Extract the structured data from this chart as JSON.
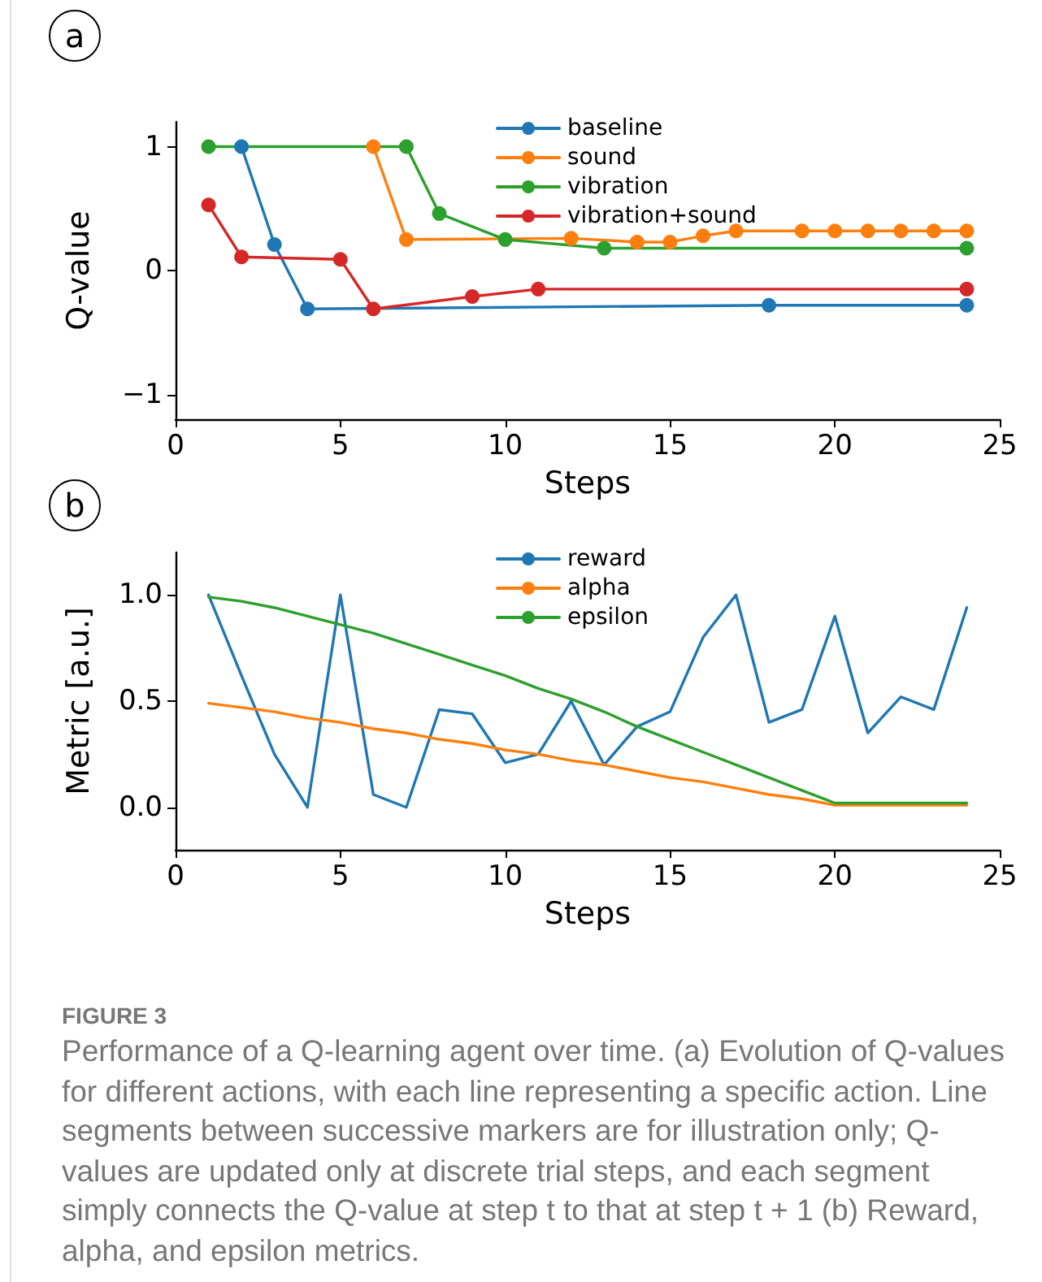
{
  "chart_data": [
    {
      "type": "line",
      "xlabel": "Steps",
      "ylabel": "Q-value",
      "annotations": [
        "a"
      ],
      "xlim": [
        0,
        25
      ],
      "xticks": [
        0,
        5,
        10,
        15,
        20,
        25
      ],
      "ylim": [
        -1.2,
        1.2
      ],
      "yticks": [
        {
          "value": -1,
          "label": "−1"
        },
        0,
        1
      ],
      "marker": "circle",
      "line_style": "solid",
      "grid": false,
      "legend": "top",
      "series": [
        {
          "name": "baseline",
          "color": "#1f77b4",
          "x": [
            2,
            3,
            4,
            18,
            24
          ],
          "values": [
            1,
            0.21,
            -0.31,
            -0.28,
            -0.28
          ]
        },
        {
          "name": "sound",
          "color": "#ff7f0e",
          "x": [
            6,
            7,
            12,
            14,
            15,
            16,
            17,
            19,
            20,
            21,
            22,
            23,
            24
          ],
          "values": [
            1,
            0.25,
            0.26,
            0.23,
            0.23,
            0.28,
            0.32,
            0.32,
            0.32,
            0.32,
            0.32,
            0.32,
            0.32
          ]
        },
        {
          "name": "vibration",
          "color": "#2ca02c",
          "x": [
            1,
            7,
            8,
            10,
            13,
            24
          ],
          "values": [
            1,
            1,
            0.46,
            0.25,
            0.18,
            0.18
          ]
        },
        {
          "name": "vibration+sound",
          "color": "#d62728",
          "x": [
            1,
            2,
            5,
            6,
            9,
            11,
            24
          ],
          "values": [
            0.53,
            0.11,
            0.09,
            -0.31,
            -0.21,
            -0.15,
            -0.15
          ]
        }
      ]
    },
    {
      "type": "line",
      "xlabel": "Steps",
      "ylabel": "Metric [a.u.]",
      "annotations": [
        "b",
        "FIGURE 3",
        "Performance of a Q-learning agent over time. (a) Evolution of Q-values for different actions, with each line representing a specific action. Line segments between successive markers are for illustration only; Q-values are updated only at discrete trial steps, and each segment simply connects the Q-value at step t to that at step t + 1 (b) Reward, alpha, and epsilon metrics."
      ],
      "xlim": [
        0,
        25
      ],
      "xticks": [
        0,
        5,
        10,
        15,
        20,
        25
      ],
      "ylim": [
        -0.2,
        1.2
      ],
      "yticks": [
        {
          "value": 0,
          "label": "0.0"
        },
        {
          "value": 0.5,
          "label": "0.5"
        },
        {
          "value": 1,
          "label": "1.0"
        }
      ],
      "line_style": "solid",
      "grid": false,
      "legend": "top",
      "x": [
        1,
        2,
        3,
        4,
        5,
        6,
        7,
        8,
        9,
        10,
        11,
        12,
        13,
        14,
        15,
        16,
        17,
        18,
        19,
        20,
        21,
        22,
        23,
        24
      ],
      "series": [
        {
          "name": "reward",
          "color": "#1f77b4",
          "values": [
            1.0,
            0.62,
            0.25,
            0,
            1.0,
            0.06,
            0,
            0.46,
            0.44,
            0.21,
            0.25,
            0.5,
            0.2,
            0.38,
            0.45,
            0.8,
            1.0,
            0.4,
            0.46,
            0.9,
            0.35,
            0.52,
            0.46,
            0.94
          ]
        },
        {
          "name": "alpha",
          "color": "#ff7f0e",
          "values": [
            0.49,
            0.47,
            0.45,
            0.42,
            0.4,
            0.37,
            0.35,
            0.32,
            0.3,
            0.27,
            0.25,
            0.22,
            0.2,
            0.17,
            0.14,
            0.12,
            0.09,
            0.06,
            0.04,
            0.01,
            0.01,
            0.01,
            0.01,
            0.01
          ]
        },
        {
          "name": "epsilon",
          "color": "#2ca02c",
          "values": [
            0.99,
            0.97,
            0.94,
            0.9,
            0.86,
            0.82,
            0.77,
            0.72,
            0.67,
            0.62,
            0.56,
            0.51,
            0.45,
            0.38,
            0.32,
            0.26,
            0.2,
            0.14,
            0.08,
            0.02,
            0.02,
            0.02,
            0.02,
            0.02
          ]
        }
      ]
    }
  ]
}
